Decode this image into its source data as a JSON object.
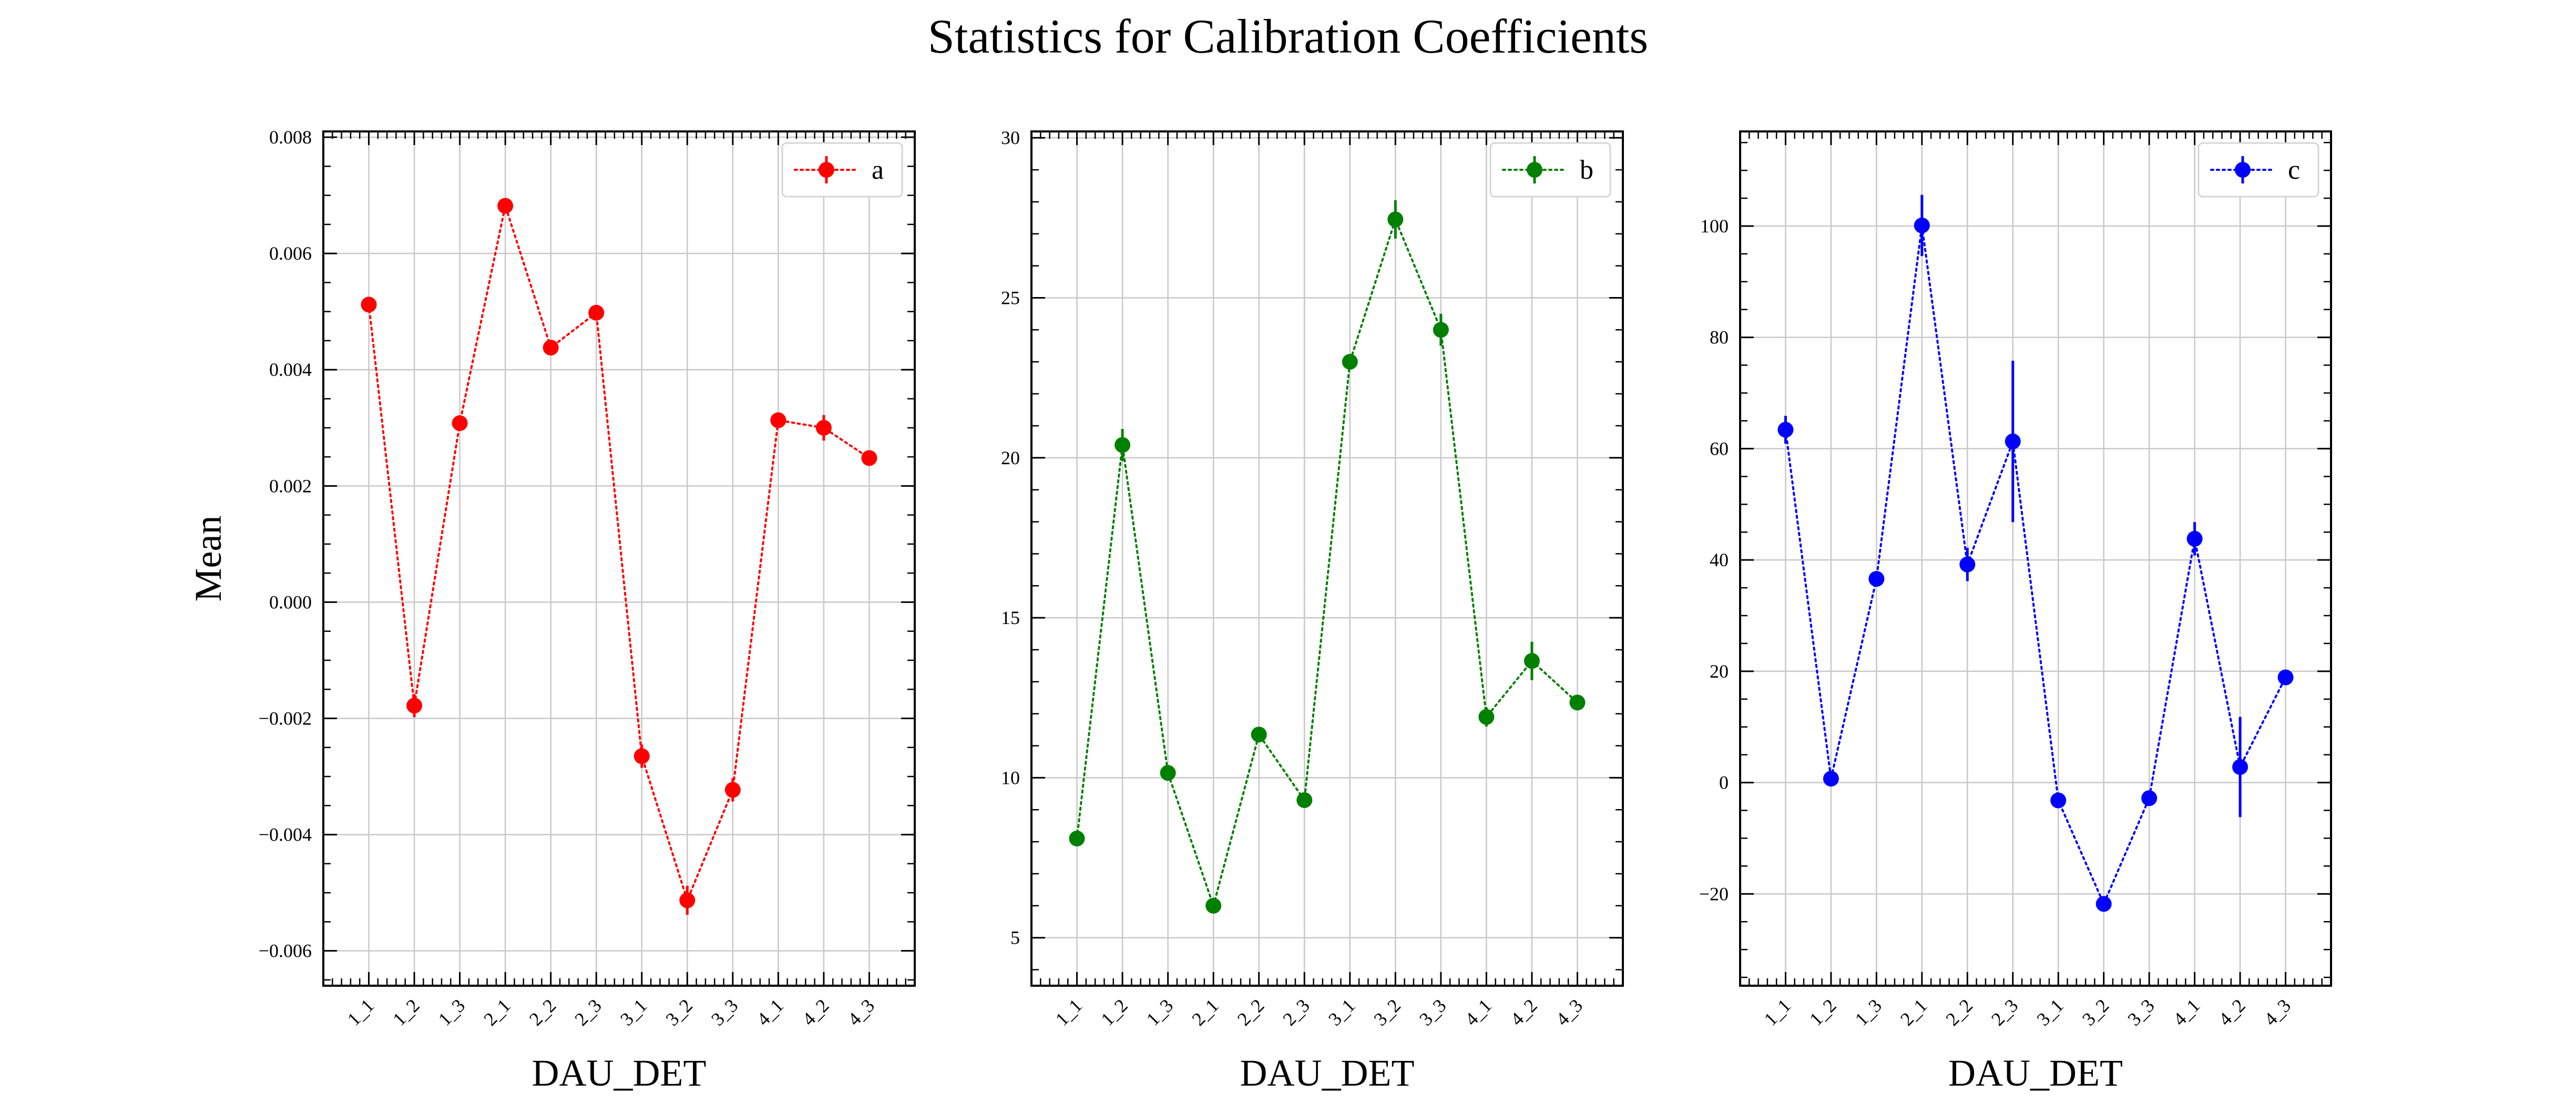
{
  "figure": {
    "title": "Statistics for Calibration Coefficients"
  },
  "chart_data": [
    {
      "type": "line",
      "title": "",
      "xlabel": "DAU_DET",
      "ylabel": "Mean",
      "categories": [
        "1_1",
        "1_2",
        "1_3",
        "2_1",
        "2_2",
        "2_3",
        "3_1",
        "3_2",
        "3_3",
        "4_1",
        "4_2",
        "4_3"
      ],
      "series": [
        {
          "name": "a",
          "color": "#ff0000",
          "values": [
            0.00512,
            -0.00178,
            0.00308,
            0.00682,
            0.00438,
            0.00498,
            -0.00265,
            -0.00513,
            -0.00323,
            0.00313,
            0.003,
            0.00248
          ],
          "errors": [
            0.0001,
            0.0002,
            8e-05,
            0.0001,
            0.0001,
            0.0001,
            0.0002,
            0.00025,
            0.0002,
            0.00012,
            0.00022,
            8e-05
          ]
        }
      ],
      "ylim": [
        -0.0066,
        0.0081
      ],
      "yticks": [
        -0.006,
        -0.004,
        -0.002,
        0.0,
        0.002,
        0.004,
        0.006,
        0.008
      ],
      "ytick_labels": [
        "−0.006",
        "−0.004",
        "−0.002",
        "0.000",
        "0.002",
        "0.004",
        "0.006",
        "0.008"
      ],
      "yminor": 0.0005,
      "grid": true,
      "legend": "top-right"
    },
    {
      "type": "line",
      "title": "",
      "xlabel": "DAU_DET",
      "ylabel": "",
      "categories": [
        "1_1",
        "1_2",
        "1_3",
        "2_1",
        "2_2",
        "2_3",
        "3_1",
        "3_2",
        "3_3",
        "4_1",
        "4_2",
        "4_3"
      ],
      "series": [
        {
          "name": "b",
          "color": "#008000",
          "values": [
            8.1,
            20.4,
            10.15,
            6.0,
            11.35,
            9.3,
            23.0,
            27.45,
            24.0,
            11.9,
            13.65,
            12.35
          ],
          "errors": [
            0.1,
            0.5,
            0.2,
            0.1,
            0.1,
            0.1,
            0.2,
            0.6,
            0.5,
            0.3,
            0.6,
            0.1
          ]
        }
      ],
      "ylim": [
        3.5,
        30.2
      ],
      "yticks": [
        5,
        10,
        15,
        20,
        25,
        30
      ],
      "ytick_labels": [
        "5",
        "10",
        "15",
        "20",
        "25",
        "30"
      ],
      "yminor": 1,
      "grid": true,
      "legend": "top-right"
    },
    {
      "type": "line",
      "title": "",
      "xlabel": "DAU_DET",
      "ylabel": "",
      "categories": [
        "1_1",
        "1_2",
        "1_3",
        "2_1",
        "2_2",
        "2_3",
        "3_1",
        "3_2",
        "3_3",
        "4_1",
        "4_2",
        "4_3"
      ],
      "series": [
        {
          "name": "c",
          "color": "#0000ff",
          "values": [
            63.4,
            0.7,
            36.6,
            100.1,
            39.2,
            61.3,
            -3.2,
            -21.8,
            -2.8,
            43.8,
            2.8,
            18.9
          ],
          "errors": [
            2.5,
            1.2,
            1.0,
            5.5,
            3.0,
            14.5,
            1.0,
            1.0,
            1.0,
            3.0,
            9.0,
            1.0
          ]
        }
      ],
      "ylim": [
        -36.5,
        117.0
      ],
      "yticks": [
        -20,
        0,
        20,
        40,
        60,
        80,
        100
      ],
      "ytick_labels": [
        "−20",
        "0",
        "20",
        "40",
        "60",
        "80",
        "100"
      ],
      "yminor": 5,
      "grid": true,
      "legend": "top-right"
    }
  ]
}
